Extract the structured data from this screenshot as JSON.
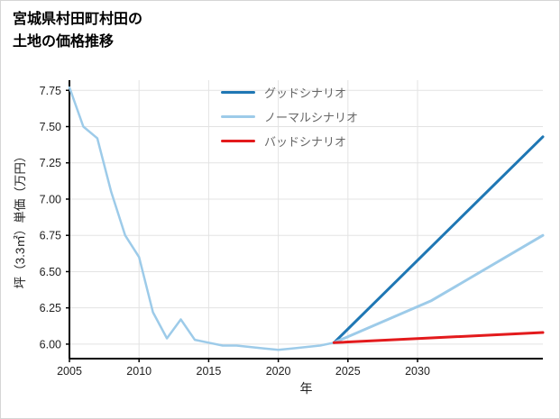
{
  "page": {
    "title_line1": "宮城県村田町村田の",
    "title_line2": "土地の価格推移"
  },
  "chart_data": {
    "type": "line",
    "title": "宮城県村田町村田の土地の価格推移",
    "xlabel": "年",
    "ylabel": "坪（3.3㎡）単価（万円）",
    "xlim": [
      2005,
      2039
    ],
    "ylim": [
      5.9,
      7.82
    ],
    "xticks": [
      2005,
      2010,
      2015,
      2020,
      2025,
      2030
    ],
    "yticks": [
      6.0,
      6.25,
      6.5,
      6.75,
      7.0,
      7.25,
      7.5,
      7.75
    ],
    "grid": true,
    "legend_position": "top-center",
    "axis_color": "#000000",
    "grid_color": "#e3e3e3",
    "historical_line": {
      "color": "#9dcbe9",
      "points": [
        [
          2005,
          7.77
        ],
        [
          2006,
          7.5
        ],
        [
          2007,
          7.42
        ],
        [
          2008,
          7.05
        ],
        [
          2009,
          6.75
        ],
        [
          2010,
          6.6
        ],
        [
          2011,
          6.22
        ],
        [
          2012,
          6.04
        ],
        [
          2013,
          6.17
        ],
        [
          2014,
          6.03
        ],
        [
          2015,
          6.01
        ],
        [
          2016,
          5.99
        ],
        [
          2017,
          5.99
        ],
        [
          2018,
          5.98
        ],
        [
          2019,
          5.97
        ],
        [
          2020,
          5.96
        ],
        [
          2021,
          5.97
        ],
        [
          2022,
          5.98
        ],
        [
          2023,
          5.99
        ],
        [
          2024,
          6.01
        ]
      ]
    },
    "series": [
      {
        "name": "グッドシナリオ",
        "color": "#1f77b4",
        "points": [
          [
            2024,
            6.01
          ],
          [
            2039,
            7.43
          ]
        ]
      },
      {
        "name": "ノーマルシナリオ",
        "color": "#9dcbe9",
        "points": [
          [
            2024,
            6.01
          ],
          [
            2031,
            6.3
          ],
          [
            2039,
            6.75
          ]
        ]
      },
      {
        "name": "バッドシナリオ",
        "color": "#e31a1c",
        "points": [
          [
            2024,
            6.01
          ],
          [
            2039,
            6.08
          ]
        ]
      }
    ]
  }
}
